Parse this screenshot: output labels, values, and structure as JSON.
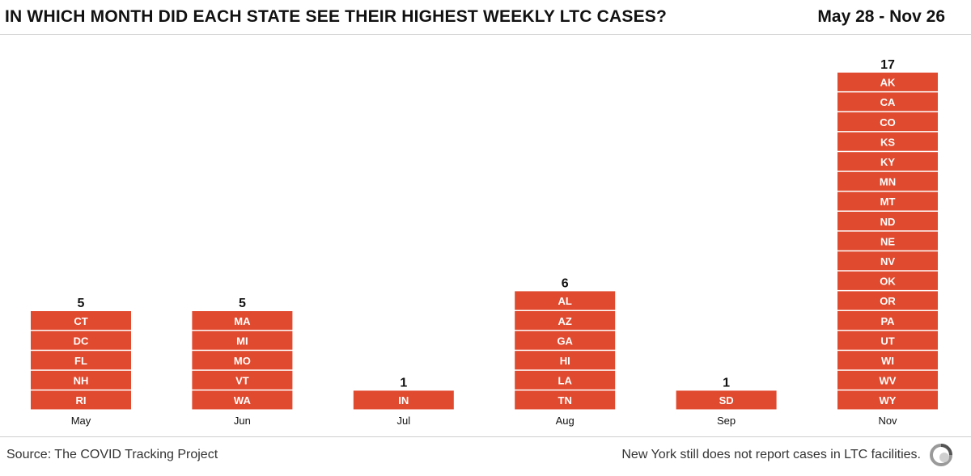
{
  "header": {
    "title": "IN WHICH MONTH DID EACH STATE SEE THEIR HIGHEST WEEKLY LTC CASES?",
    "date_range": "May 28 - Nov 26"
  },
  "footer": {
    "source": "Source: The COVID Tracking Project",
    "note": "New York still does not report cases in LTC facilities."
  },
  "colors": {
    "bar": "#e04a2f",
    "bar_text": "#ffffff",
    "separator": "#ffffff",
    "axis_text": "#111111"
  },
  "chart_data": {
    "type": "bar",
    "title": "IN WHICH MONTH DID EACH STATE SEE THEIR HIGHEST WEEKLY LTC CASES?",
    "xlabel": "",
    "ylabel": "",
    "ylim": [
      0,
      17
    ],
    "categories": [
      "May",
      "Jun",
      "Jul",
      "Aug",
      "Sep",
      "Nov"
    ],
    "values": [
      5,
      5,
      1,
      6,
      1,
      17
    ],
    "stacks": [
      [
        "CT",
        "DC",
        "FL",
        "NH",
        "RI"
      ],
      [
        "MA",
        "MI",
        "MO",
        "VT",
        "WA"
      ],
      [
        "IN"
      ],
      [
        "AL",
        "AZ",
        "GA",
        "HI",
        "LA",
        "TN"
      ],
      [
        "SD"
      ],
      [
        "AK",
        "CA",
        "CO",
        "KS",
        "KY",
        "MN",
        "MT",
        "ND",
        "NE",
        "NV",
        "OK",
        "OR",
        "PA",
        "UT",
        "WI",
        "WV",
        "WY"
      ]
    ]
  }
}
